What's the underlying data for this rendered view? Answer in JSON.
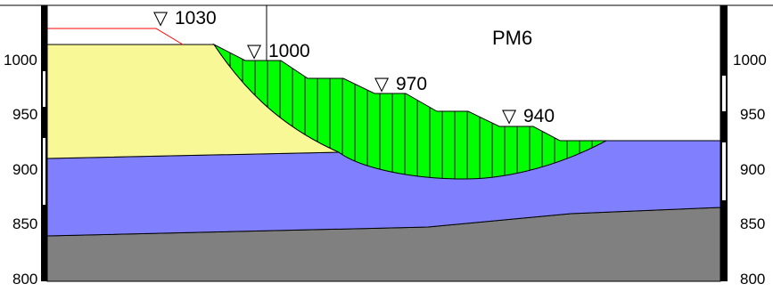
{
  "title": "PM6",
  "y_axis": {
    "ticks": [
      "800",
      "850",
      "900",
      "950",
      "1000"
    ],
    "range": [
      800,
      1030
    ]
  },
  "elevation_labels": [
    {
      "symbol": "▽",
      "value": "1030"
    },
    {
      "symbol": "▽",
      "value": "1000"
    },
    {
      "symbol": "▽",
      "value": "970"
    },
    {
      "symbol": "▽",
      "value": "940"
    }
  ],
  "colors": {
    "upper_soil": "#f8f897",
    "middle_soil": "#8080ff",
    "bedrock": "#808080",
    "sliding_mass": "#00ff00",
    "water_table": "#ff0000",
    "frame": "#000000"
  }
}
